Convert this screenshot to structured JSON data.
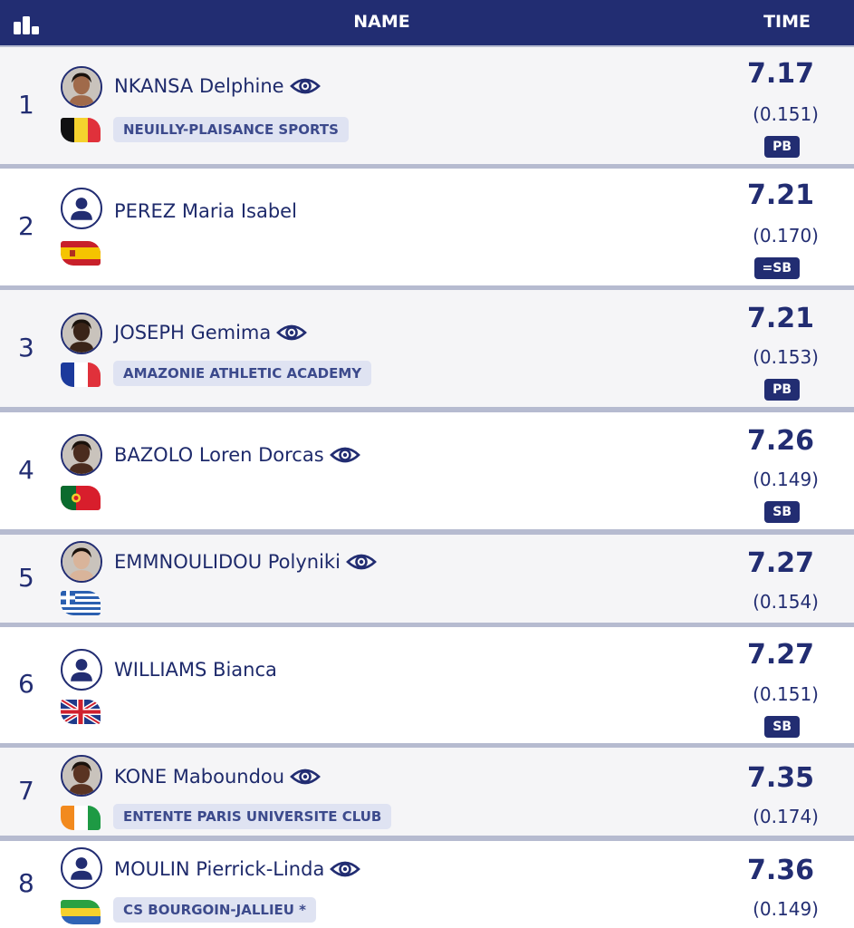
{
  "header": {
    "name_label": "NAME",
    "time_label": "TIME",
    "rank_icon": "podium-icon"
  },
  "rows": [
    {
      "rank": "1",
      "name": "NKANSA Delphine",
      "eye": true,
      "flag": "BEL",
      "club": "NEUILLY-PLAISANCE SPORTS",
      "time": "7.17",
      "reaction": "(0.151)",
      "badge": "PB",
      "photo": "photo",
      "skin": "#a06a4a"
    },
    {
      "rank": "2",
      "name": "PEREZ Maria Isabel",
      "eye": false,
      "flag": "ESP",
      "club": "",
      "time": "7.21",
      "reaction": "(0.170)",
      "badge": "=SB",
      "photo": "placeholder"
    },
    {
      "rank": "3",
      "name": "JOSEPH Gemima",
      "eye": true,
      "flag": "FRA",
      "club": "AMAZONIE ATHLETIC ACADEMY",
      "time": "7.21",
      "reaction": "(0.153)",
      "badge": "PB",
      "photo": "photo",
      "skin": "#3a2418"
    },
    {
      "rank": "4",
      "name": "BAZOLO Loren Dorcas",
      "eye": true,
      "flag": "POR",
      "club": "",
      "time": "7.26",
      "reaction": "(0.149)",
      "badge": "SB",
      "photo": "photo",
      "skin": "#4a2c1e"
    },
    {
      "rank": "5",
      "name": "EMMNOULIDOU Polyniki",
      "eye": true,
      "flag": "GRE",
      "club": "",
      "time": "7.27",
      "reaction": "(0.154)",
      "badge": "",
      "photo": "photo",
      "skin": "#d9b49a"
    },
    {
      "rank": "6",
      "name": "WILLIAMS Bianca",
      "eye": false,
      "flag": "GBR",
      "club": "",
      "time": "7.27",
      "reaction": "(0.151)",
      "badge": "SB",
      "photo": "placeholder"
    },
    {
      "rank": "7",
      "name": "KONE Maboundou",
      "eye": true,
      "flag": "CIV",
      "club": "ENTENTE PARIS UNIVERSITE CLUB",
      "time": "7.35",
      "reaction": "(0.174)",
      "badge": "",
      "photo": "photo",
      "skin": "#5a3422"
    },
    {
      "rank": "8",
      "name": "MOULIN Pierrick-Linda",
      "eye": true,
      "flag": "GAB",
      "club": "CS BOURGOIN-JALLIEU *",
      "time": "7.36",
      "reaction": "(0.149)",
      "badge": "",
      "photo": "placeholder"
    }
  ]
}
